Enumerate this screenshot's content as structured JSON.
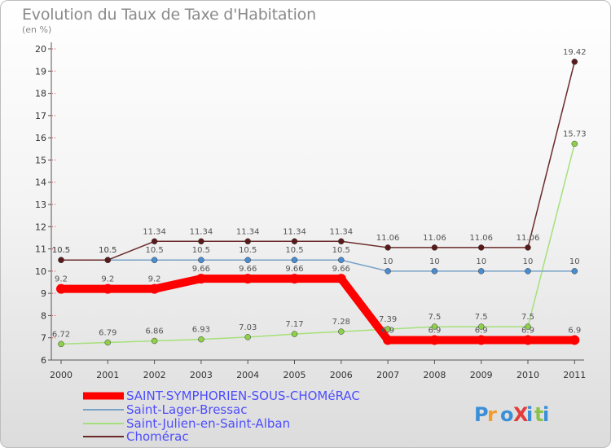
{
  "chart_data": {
    "type": "line",
    "title": "Evolution du Taux de Taxe d'Habitation",
    "subtitle": "(en %)",
    "x": [
      "2000",
      "2001",
      "2002",
      "2003",
      "2004",
      "2005",
      "2006",
      "2007",
      "2008",
      "2009",
      "2010",
      "2011"
    ],
    "ylim": [
      6,
      20
    ],
    "yticks": [
      "6",
      "7",
      "8",
      "9",
      "10",
      "11",
      "12",
      "13",
      "14",
      "15",
      "16",
      "17",
      "18",
      "19",
      "20"
    ],
    "series": [
      {
        "name": "SAINT-SYMPHORIEN-SOUS-CHOMéRAC",
        "color": "#ff0000",
        "values": [
          9.2,
          9.2,
          9.2,
          9.66,
          9.66,
          9.66,
          9.66,
          6.9,
          6.9,
          6.9,
          6.9,
          6.9
        ],
        "labels": [
          "9.2",
          "9.2",
          "9.2",
          "9.66",
          "9.66",
          "9.66",
          "9.66",
          "6.9",
          "6.9",
          "6.9",
          "6.9",
          "6.9"
        ]
      },
      {
        "name": "Saint-Lager-Bressac",
        "color": "#7aa2c7",
        "values": [
          10.5,
          10.5,
          10.5,
          10.5,
          10.5,
          10.5,
          10.5,
          10,
          10,
          10,
          10,
          10
        ],
        "labels": [
          "10.5",
          "10.5",
          "10.5",
          "10.5",
          "10.5",
          "10.5",
          "10.5",
          "10",
          "10",
          "10",
          "10",
          "10"
        ]
      },
      {
        "name": "Saint-Julien-en-Saint-Alban",
        "color": "#a6e07a",
        "values": [
          6.72,
          6.79,
          6.86,
          6.93,
          7.03,
          7.17,
          7.28,
          7.39,
          7.5,
          7.5,
          7.5,
          15.73
        ],
        "labels": [
          "6.72",
          "6.79",
          "6.86",
          "6.93",
          "7.03",
          "7.17",
          "7.28",
          "7.39",
          "7.5",
          "7.5",
          "7.5",
          "15.73"
        ]
      },
      {
        "name": "Chomérac",
        "color": "#6b2a2a",
        "values": [
          10.5,
          10.5,
          11.34,
          11.34,
          11.34,
          11.34,
          11.34,
          11.06,
          11.06,
          11.06,
          11.06,
          19.42
        ],
        "labels": [
          "10.5",
          "10.5",
          "11.34",
          "11.34",
          "11.34",
          "11.34",
          "11.34",
          "11.06",
          "11.06",
          "11.06",
          "11.06",
          "19.42"
        ]
      }
    ]
  },
  "logo": {
    "text": "ProXiti"
  }
}
